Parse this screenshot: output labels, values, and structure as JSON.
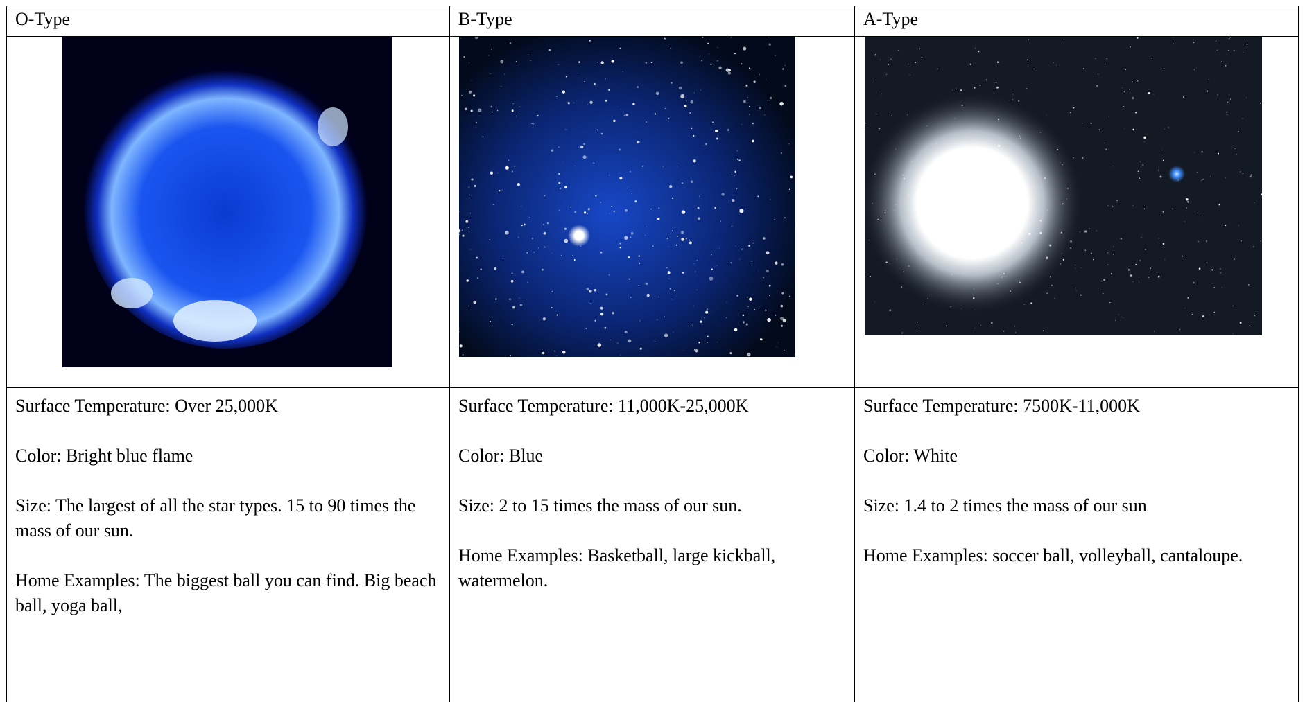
{
  "table": {
    "headers": [
      "O-Type",
      "B-Type",
      "A-Type"
    ],
    "details": [
      [
        "Surface Temperature: Over 25,000K",
        "Color: Bright blue flame",
        "Size: The largest of all the star types. 15 to 90 times the mass of our sun.",
        "Home Examples: The biggest ball you can find. Big beach ball, yoga ball,"
      ],
      [
        "Surface Temperature: 11,000K-25,000K",
        "Color: Blue",
        "Size: 2 to 15 times the mass of our sun.",
        "Home Examples: Basketball, large kickball, watermelon."
      ],
      [
        "Surface Temperature: 7500K-11,000K",
        "Color: White",
        "Size: 1.4 to 2 times the mass of our sun",
        "Home Examples: soccer ball, volleyball, cantaloupe."
      ]
    ]
  }
}
